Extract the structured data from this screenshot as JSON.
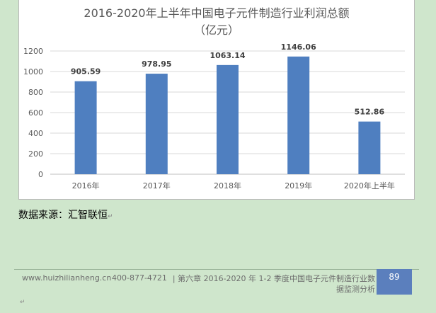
{
  "chart_data": {
    "type": "bar",
    "title": "2016-2020年上半年中国电子元件制造行业利润总额",
    "subtitle": "（亿元）",
    "categories": [
      "2016年",
      "2017年",
      "2018年",
      "2019年",
      "2020年上半年"
    ],
    "values": [
      905.59,
      978.95,
      1063.14,
      1146.06,
      512.86
    ],
    "value_labels": [
      "905.59",
      "978.95",
      "1063.14",
      "1146.06",
      "512.86"
    ],
    "yticks": [
      "0",
      "200",
      "400",
      "600",
      "800",
      "1000",
      "1200"
    ],
    "ylim": [
      0,
      1200
    ],
    "grid": true,
    "bar_color": "#4f7fc0"
  },
  "source": "数据来源：汇智联恒",
  "footer": {
    "website": "www.huizhilianheng.cn",
    "phone": "400-877-4721",
    "chapter_line1": "| 第六章 2016-2020 年 1-2 季度中国电子元件制造行业数",
    "chapter_line2": "据监测分析",
    "page_number": "89"
  }
}
